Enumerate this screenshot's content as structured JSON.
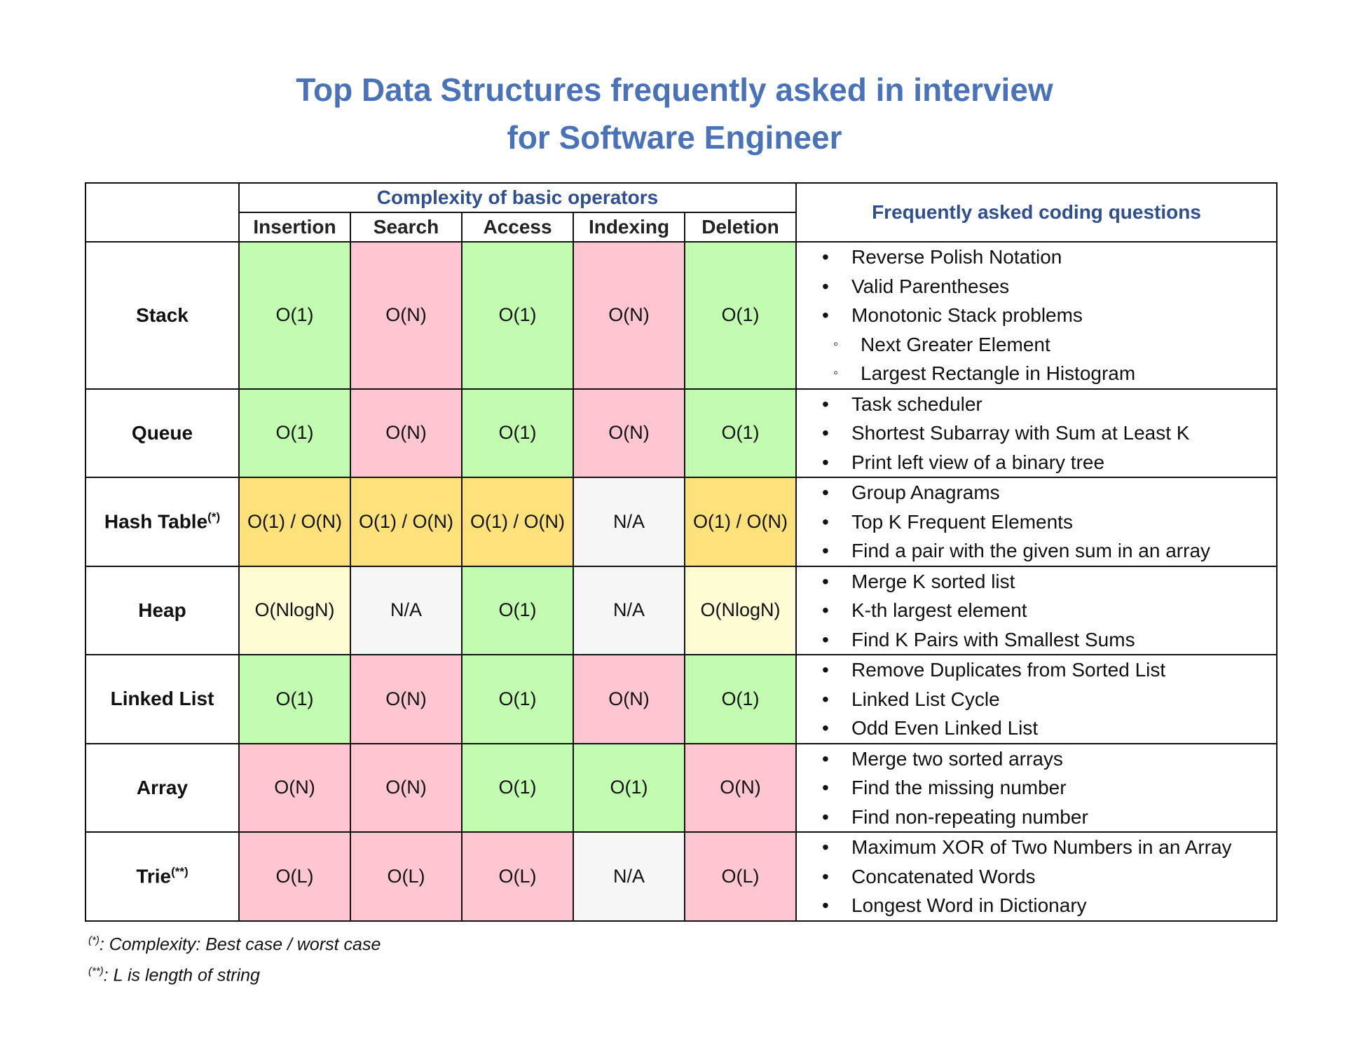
{
  "title": {
    "line1": "Top Data Structures frequently asked in interview",
    "line2": "for Software Engineer"
  },
  "table": {
    "group_header": "Complexity of basic operators",
    "questions_header": "Frequently asked coding questions",
    "operations": [
      "Insertion",
      "Search",
      "Access",
      "Indexing",
      "Deletion"
    ],
    "rows": [
      {
        "name": "Stack",
        "mark": "",
        "values": [
          "O(1)",
          "O(N)",
          "O(1)",
          "O(N)",
          "O(1)"
        ],
        "colors": [
          "green",
          "pink",
          "green",
          "pink",
          "green"
        ],
        "questions": [
          {
            "text": "Reverse Polish Notation",
            "level": 0
          },
          {
            "text": "Valid Parentheses",
            "level": 0
          },
          {
            "text": "Monotonic Stack problems",
            "level": 0
          },
          {
            "text": "Next Greater Element",
            "level": 1
          },
          {
            "text": "Largest Rectangle in Histogram",
            "level": 1
          }
        ]
      },
      {
        "name": "Queue",
        "mark": "",
        "values": [
          "O(1)",
          "O(N)",
          "O(1)",
          "O(N)",
          "O(1)"
        ],
        "colors": [
          "green",
          "pink",
          "green",
          "pink",
          "green"
        ],
        "questions": [
          {
            "text": "Task scheduler",
            "level": 0
          },
          {
            "text": "Shortest Subarray with Sum at Least K",
            "level": 0
          },
          {
            "text": "Print left view of a binary tree",
            "level": 0
          }
        ]
      },
      {
        "name": "Hash Table",
        "mark": "(*)",
        "values": [
          "O(1) / O(N)",
          "O(1) / O(N)",
          "O(1) / O(N)",
          "N/A",
          "O(1) / O(N)"
        ],
        "colors": [
          "yellow",
          "yellow",
          "yellow",
          "grey",
          "yellow"
        ],
        "questions": [
          {
            "text": "Group Anagrams",
            "level": 0
          },
          {
            "text": "Top K Frequent Elements",
            "level": 0
          },
          {
            "text": "Find a pair with the given sum in an array",
            "level": 0
          }
        ]
      },
      {
        "name": "Heap",
        "mark": "",
        "values": [
          "O(NlogN)",
          "N/A",
          "O(1)",
          "N/A",
          "O(NlogN)"
        ],
        "colors": [
          "light",
          "grey",
          "green",
          "grey",
          "light"
        ],
        "questions": [
          {
            "text": "Merge K sorted list",
            "level": 0
          },
          {
            "text": "K-th largest element",
            "level": 0
          },
          {
            "text": "Find K Pairs with Smallest Sums",
            "level": 0
          }
        ]
      },
      {
        "name": "Linked List",
        "mark": "",
        "values": [
          "O(1)",
          "O(N)",
          "O(1)",
          "O(N)",
          "O(1)"
        ],
        "colors": [
          "green",
          "pink",
          "green",
          "pink",
          "green"
        ],
        "questions": [
          {
            "text": "Remove Duplicates from Sorted List",
            "level": 0
          },
          {
            "text": "Linked List Cycle",
            "level": 0
          },
          {
            "text": "Odd Even Linked List",
            "level": 0
          }
        ]
      },
      {
        "name": "Array",
        "mark": "",
        "values": [
          "O(N)",
          "O(N)",
          "O(1)",
          "O(1)",
          "O(N)"
        ],
        "colors": [
          "pink",
          "pink",
          "green",
          "green",
          "pink"
        ],
        "questions": [
          {
            "text": "Merge two sorted arrays",
            "level": 0
          },
          {
            "text": "Find the missing number",
            "level": 0
          },
          {
            "text": "Find non-repeating number",
            "level": 0
          }
        ]
      },
      {
        "name": "Trie",
        "mark": "(**)",
        "values": [
          "O(L)",
          "O(L)",
          "O(L)",
          "N/A",
          "O(L)"
        ],
        "colors": [
          "pink",
          "pink",
          "pink",
          "grey",
          "pink"
        ],
        "questions": [
          {
            "text": "Maximum XOR of Two Numbers in an Array",
            "level": 0
          },
          {
            "text": "Concatenated Words",
            "level": 0
          },
          {
            "text": "Longest Word in Dictionary",
            "level": 0
          }
        ]
      }
    ]
  },
  "bullets": {
    "main": "•",
    "sub": "◦"
  },
  "notes": [
    {
      "mark": "(*)",
      "text": ": Complexity: Best case / worst case"
    },
    {
      "mark": "(**)",
      "text": ": L is length of string"
    }
  ]
}
